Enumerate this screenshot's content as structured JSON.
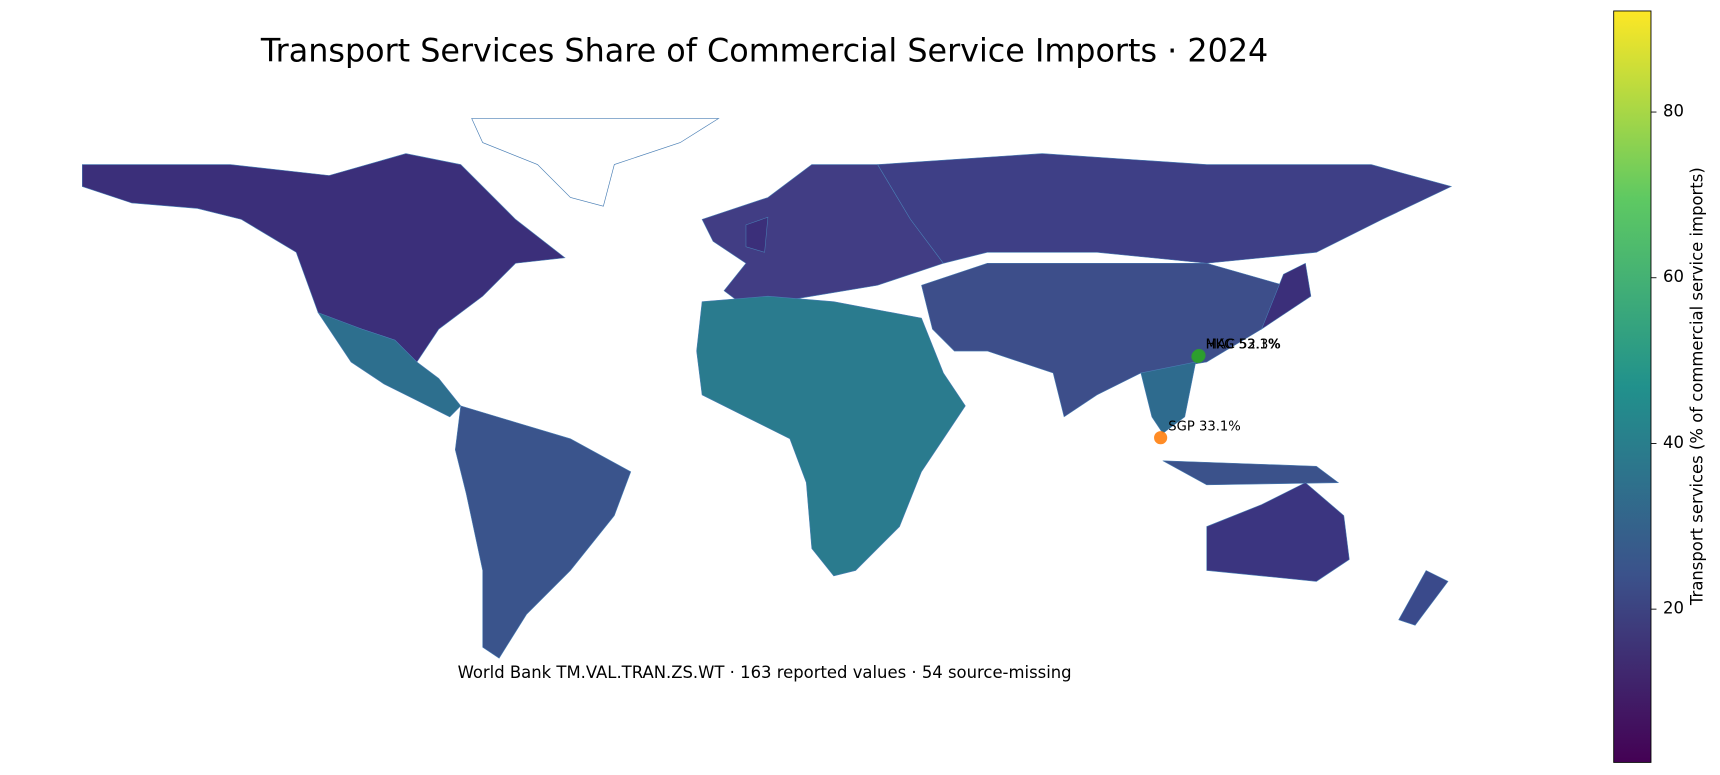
{
  "chart_data": {
    "type": "choropleth",
    "title": "Transport Services Share of Commercial Service Imports · 2024",
    "subtitle": "World Bank TM.VAL.TRAN.ZS.WT · 163 reported values · 54 source-missing",
    "colorbar": {
      "label": "Transport services (% of commercial service imports)",
      "lim": [
        1.5,
        92.2
      ],
      "ticks": [
        20,
        40,
        60,
        80
      ],
      "colormap": [
        "#440154",
        "#3b528b",
        "#21918c",
        "#5ec962",
        "#fde725"
      ]
    },
    "points": [
      {
        "label": "HKG 53.1%",
        "value": 53.1,
        "color": "#2ca02c"
      },
      {
        "label": "MAC 52.3%",
        "value": 52.3,
        "color": "#2ca02c"
      },
      {
        "label": "SGP 33.1%",
        "value": 33.1,
        "color": "#ff7f0e"
      }
    ]
  }
}
